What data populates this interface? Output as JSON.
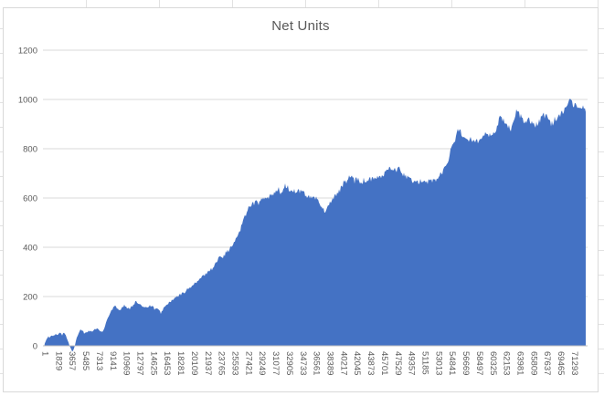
{
  "chart_data": {
    "type": "area",
    "title": "Net Units",
    "xlabel": "",
    "ylabel": "",
    "ylim": [
      0,
      1200
    ],
    "xlim": [
      1,
      72900
    ],
    "y_ticks": [
      0,
      200,
      400,
      600,
      800,
      1000,
      1200
    ],
    "x_tick_labels": [
      "1",
      "1829",
      "3657",
      "5485",
      "7313",
      "9141",
      "10969",
      "12797",
      "14625",
      "16453",
      "18281",
      "20109",
      "21937",
      "23765",
      "25593",
      "27421",
      "29249",
      "31077",
      "32905",
      "34733",
      "36561",
      "38389",
      "40217",
      "42045",
      "43873",
      "45701",
      "47529",
      "49357",
      "51185",
      "53013",
      "54841",
      "56669",
      "58497",
      "60325",
      "62153",
      "63981",
      "65809",
      "67637",
      "69465",
      "71293"
    ],
    "grid": true,
    "legend": false,
    "colors": {
      "area": "#4472C4",
      "gridline": "#d9d9d9",
      "axis_line": "#bfbfbf",
      "tick_text": "#595959",
      "title_text": "#595959"
    },
    "series": [
      {
        "name": "Net Units",
        "points": [
          [
            1,
            6
          ],
          [
            250,
            22
          ],
          [
            500,
            38
          ],
          [
            750,
            34
          ],
          [
            1000,
            44
          ],
          [
            1250,
            40
          ],
          [
            1500,
            46
          ],
          [
            1830,
            42
          ],
          [
            2100,
            52
          ],
          [
            2400,
            45
          ],
          [
            2700,
            52
          ],
          [
            2950,
            40
          ],
          [
            3150,
            22
          ],
          [
            3350,
            6
          ],
          [
            3550,
            -10
          ],
          [
            3750,
            -26
          ],
          [
            3950,
            -16
          ],
          [
            4150,
            4
          ],
          [
            4300,
            24
          ],
          [
            4450,
            38
          ],
          [
            4600,
            52
          ],
          [
            4800,
            62
          ],
          [
            5000,
            68
          ],
          [
            5200,
            58
          ],
          [
            5400,
            50
          ],
          [
            5600,
            55
          ],
          [
            5900,
            58
          ],
          [
            6200,
            62
          ],
          [
            6500,
            60
          ],
          [
            6800,
            66
          ],
          [
            7100,
            72
          ],
          [
            7400,
            62
          ],
          [
            7700,
            55
          ],
          [
            8000,
            62
          ],
          [
            8350,
            100
          ],
          [
            8700,
            122
          ],
          [
            9000,
            142
          ],
          [
            9300,
            158
          ],
          [
            9500,
            168
          ],
          [
            9800,
            152
          ],
          [
            10200,
            145
          ],
          [
            10500,
            156
          ],
          [
            10800,
            164
          ],
          [
            11100,
            152
          ],
          [
            11400,
            150
          ],
          [
            11700,
            160
          ],
          [
            12000,
            168
          ],
          [
            12300,
            180
          ],
          [
            12600,
            172
          ],
          [
            12900,
            164
          ],
          [
            13300,
            162
          ],
          [
            13700,
            156
          ],
          [
            14100,
            163
          ],
          [
            14500,
            162
          ],
          [
            14800,
            152
          ],
          [
            15100,
            150
          ],
          [
            15400,
            144
          ],
          [
            15700,
            134
          ],
          [
            16000,
            150
          ],
          [
            16350,
            162
          ],
          [
            16700,
            172
          ],
          [
            17000,
            180
          ],
          [
            17300,
            186
          ],
          [
            17600,
            194
          ],
          [
            18000,
            201
          ],
          [
            18300,
            207
          ],
          [
            18600,
            213
          ],
          [
            18900,
            221
          ],
          [
            19200,
            227
          ],
          [
            19500,
            234
          ],
          [
            19800,
            241
          ],
          [
            20110,
            248
          ],
          [
            20400,
            256
          ],
          [
            20700,
            263
          ],
          [
            21000,
            271
          ],
          [
            21300,
            279
          ],
          [
            21600,
            289
          ],
          [
            21940,
            298
          ],
          [
            22200,
            306
          ],
          [
            22500,
            311
          ],
          [
            22800,
            323
          ],
          [
            23100,
            336
          ],
          [
            23400,
            351
          ],
          [
            23770,
            371
          ],
          [
            24000,
            363
          ],
          [
            24300,
            373
          ],
          [
            24600,
            383
          ],
          [
            24900,
            393
          ],
          [
            25200,
            401
          ],
          [
            25590,
            419
          ],
          [
            25900,
            439
          ],
          [
            26200,
            463
          ],
          [
            26500,
            481
          ],
          [
            26800,
            511
          ],
          [
            27100,
            533
          ],
          [
            27420,
            556
          ],
          [
            27700,
            571
          ],
          [
            28000,
            581
          ],
          [
            28300,
            576
          ],
          [
            28650,
            586
          ],
          [
            29000,
            579
          ],
          [
            29250,
            589
          ],
          [
            29600,
            599
          ],
          [
            29900,
            593
          ],
          [
            30200,
            601
          ],
          [
            30500,
            611
          ],
          [
            30800,
            619
          ],
          [
            31080,
            628
          ],
          [
            31400,
            636
          ],
          [
            31700,
            629
          ],
          [
            32000,
            621
          ],
          [
            32300,
            641
          ],
          [
            32600,
            651
          ],
          [
            32900,
            639
          ],
          [
            33200,
            626
          ],
          [
            33500,
            633
          ],
          [
            33800,
            619
          ],
          [
            34100,
            629
          ],
          [
            34400,
            623
          ],
          [
            34730,
            631
          ],
          [
            35000,
            619
          ],
          [
            35300,
            609
          ],
          [
            35600,
            599
          ],
          [
            35900,
            607
          ],
          [
            36200,
            601
          ],
          [
            36560,
            596
          ],
          [
            36900,
            586
          ],
          [
            37200,
            573
          ],
          [
            37500,
            557
          ],
          [
            37800,
            546
          ],
          [
            38100,
            561
          ],
          [
            38390,
            579
          ],
          [
            38700,
            591
          ],
          [
            39000,
            601
          ],
          [
            39300,
            613
          ],
          [
            39700,
            626
          ],
          [
            40000,
            641
          ],
          [
            40220,
            656
          ],
          [
            40500,
            663
          ],
          [
            40800,
            673
          ],
          [
            41100,
            691
          ],
          [
            41400,
            679
          ],
          [
            41700,
            669
          ],
          [
            42050,
            681
          ],
          [
            42400,
            673
          ],
          [
            42700,
            663
          ],
          [
            43000,
            673
          ],
          [
            43300,
            666
          ],
          [
            43600,
            673
          ],
          [
            43880,
            681
          ],
          [
            44200,
            673
          ],
          [
            44500,
            679
          ],
          [
            44800,
            686
          ],
          [
            45100,
            679
          ],
          [
            45400,
            689
          ],
          [
            45700,
            696
          ],
          [
            46000,
            706
          ],
          [
            46300,
            723
          ],
          [
            46600,
            713
          ],
          [
            46900,
            706
          ],
          [
            47200,
            716
          ],
          [
            47530,
            721
          ],
          [
            47800,
            711
          ],
          [
            48100,
            703
          ],
          [
            48400,
            696
          ],
          [
            48700,
            689
          ],
          [
            49000,
            683
          ],
          [
            49360,
            673
          ],
          [
            49700,
            666
          ],
          [
            50000,
            659
          ],
          [
            50300,
            663
          ],
          [
            50600,
            669
          ],
          [
            50900,
            676
          ],
          [
            51190,
            669
          ],
          [
            51500,
            663
          ],
          [
            51800,
            669
          ],
          [
            52100,
            673
          ],
          [
            52400,
            666
          ],
          [
            52700,
            673
          ],
          [
            53010,
            681
          ],
          [
            53300,
            693
          ],
          [
            53600,
            706
          ],
          [
            53900,
            721
          ],
          [
            54200,
            743
          ],
          [
            54500,
            769
          ],
          [
            54840,
            801
          ],
          [
            55100,
            826
          ],
          [
            55400,
            849
          ],
          [
            55700,
            873
          ],
          [
            55900,
            881
          ],
          [
            56100,
            869
          ],
          [
            56400,
            849
          ],
          [
            56670,
            836
          ],
          [
            56900,
            829
          ],
          [
            57200,
            833
          ],
          [
            57500,
            839
          ],
          [
            57800,
            833
          ],
          [
            58100,
            841
          ],
          [
            58500,
            836
          ],
          [
            58800,
            846
          ],
          [
            59100,
            853
          ],
          [
            59400,
            869
          ],
          [
            59700,
            856
          ],
          [
            60000,
            849
          ],
          [
            60330,
            859
          ],
          [
            60600,
            863
          ],
          [
            60900,
            886
          ],
          [
            61200,
            921
          ],
          [
            61500,
            941
          ],
          [
            61800,
            916
          ],
          [
            62150,
            899
          ],
          [
            62500,
            889
          ],
          [
            62800,
            881
          ],
          [
            63100,
            906
          ],
          [
            63400,
            941
          ],
          [
            63700,
            959
          ],
          [
            63980,
            941
          ],
          [
            64300,
            921
          ],
          [
            64600,
            909
          ],
          [
            64900,
            916
          ],
          [
            65200,
            921
          ],
          [
            65500,
            913
          ],
          [
            65810,
            906
          ],
          [
            66100,
            896
          ],
          [
            66400,
            901
          ],
          [
            66700,
            916
          ],
          [
            67000,
            931
          ],
          [
            67300,
            941
          ],
          [
            67640,
            933
          ],
          [
            67900,
            916
          ],
          [
            68200,
            906
          ],
          [
            68500,
            911
          ],
          [
            68800,
            921
          ],
          [
            69100,
            929
          ],
          [
            69470,
            939
          ],
          [
            69800,
            949
          ],
          [
            70100,
            963
          ],
          [
            70400,
            986
          ],
          [
            70700,
            1009
          ],
          [
            70900,
            996
          ],
          [
            71290,
            973
          ],
          [
            71500,
            981
          ],
          [
            71800,
            969
          ],
          [
            72100,
            979
          ],
          [
            72400,
            963
          ],
          [
            72700,
            969
          ],
          [
            72900,
            959
          ]
        ]
      }
    ]
  }
}
